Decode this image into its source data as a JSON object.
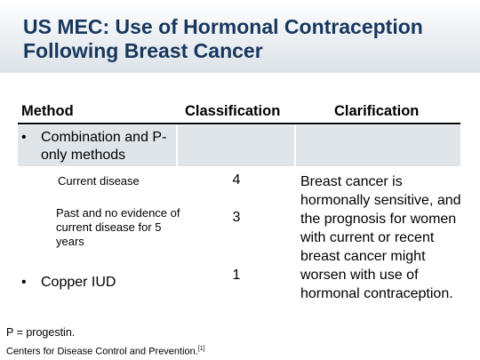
{
  "title": "US MEC: Use of Hormonal Contraception Following Breast Cancer",
  "table": {
    "headers": {
      "method": "Method",
      "classification": "Classification",
      "clarification": "Clarification"
    },
    "group_row": {
      "bullet": "•",
      "method": "Combination and P-only methods"
    },
    "rows": [
      {
        "method": "Current disease",
        "classification": "4"
      },
      {
        "method": "Past and no evidence of current disease for 5 years",
        "classification": "3"
      },
      {
        "bullet": "•",
        "method": "Copper IUD",
        "classification": "1"
      }
    ],
    "clarification": "Breast cancer is hormonally sensitive, and the prognosis for women with current or recent breast cancer might worsen with use of hormonal contraception."
  },
  "footnote": "P = progestin.",
  "source": {
    "text": "Centers for Disease Control and Prevention.",
    "ref": "[1]"
  }
}
